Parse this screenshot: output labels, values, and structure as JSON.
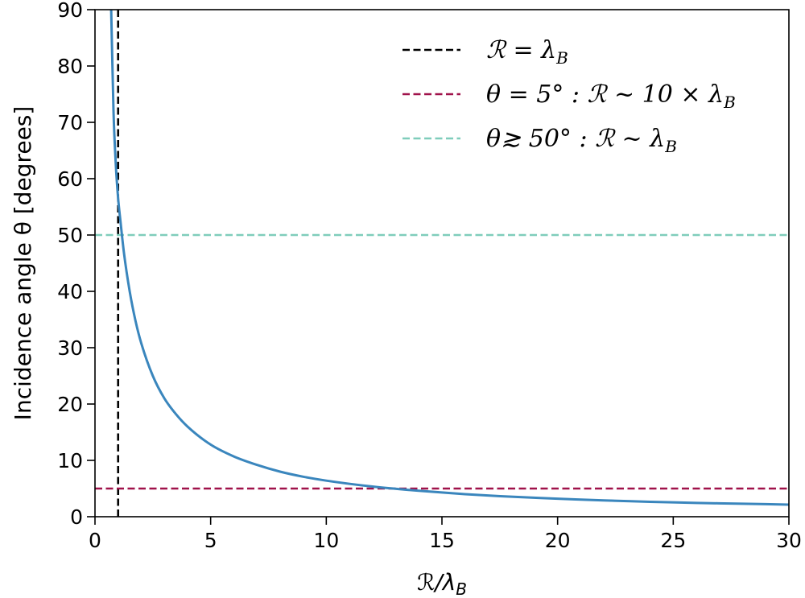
{
  "chart_data": {
    "type": "line",
    "title": "",
    "xlabel": "ℛ/λ_B",
    "ylabel": "Incidence angle θ [degrees]",
    "xlim": [
      0,
      30
    ],
    "ylim": [
      0,
      90
    ],
    "xticks": [
      0,
      5,
      10,
      15,
      20,
      25,
      30
    ],
    "yticks": [
      0,
      10,
      20,
      30,
      40,
      50,
      60,
      70,
      80,
      90
    ],
    "grid": false,
    "legend_position": "top-right",
    "series": [
      {
        "color": "#3a86bd",
        "style": "solid",
        "x": [
          0.7,
          0.8,
          0.9,
          1.0,
          1.1,
          1.25,
          1.5,
          1.75,
          2,
          2.5,
          3,
          3.5,
          4,
          5,
          6,
          7,
          8,
          9,
          10,
          12,
          14,
          16,
          18,
          20,
          22,
          24,
          26,
          28,
          30
        ],
        "y": [
          90,
          72,
          62.5,
          56.5,
          52.5,
          46.9,
          40,
          34.8,
          30.8,
          25,
          21,
          18.2,
          16,
          12.8,
          10.7,
          9.2,
          8,
          7.1,
          6.4,
          5.35,
          4.6,
          4.0,
          3.55,
          3.2,
          2.9,
          2.65,
          2.45,
          2.3,
          2.15
        ]
      }
    ],
    "reference_lines": [
      {
        "orientation": "vertical",
        "value": 1,
        "color": "#000000",
        "style": "dashed",
        "legend": "ℛ = λ",
        "legend_sub": "B"
      },
      {
        "orientation": "horizontal",
        "value": 5,
        "color": "#a0124a",
        "style": "dashed",
        "legend": "θ = 5° : ℛ ~ 10 × λ",
        "legend_sub": "B"
      },
      {
        "orientation": "horizontal",
        "value": 50,
        "color": "#7fcdbb",
        "style": "dashed",
        "legend": "θ≳ 50° : ℛ ~ λ",
        "legend_sub": "B"
      }
    ]
  }
}
